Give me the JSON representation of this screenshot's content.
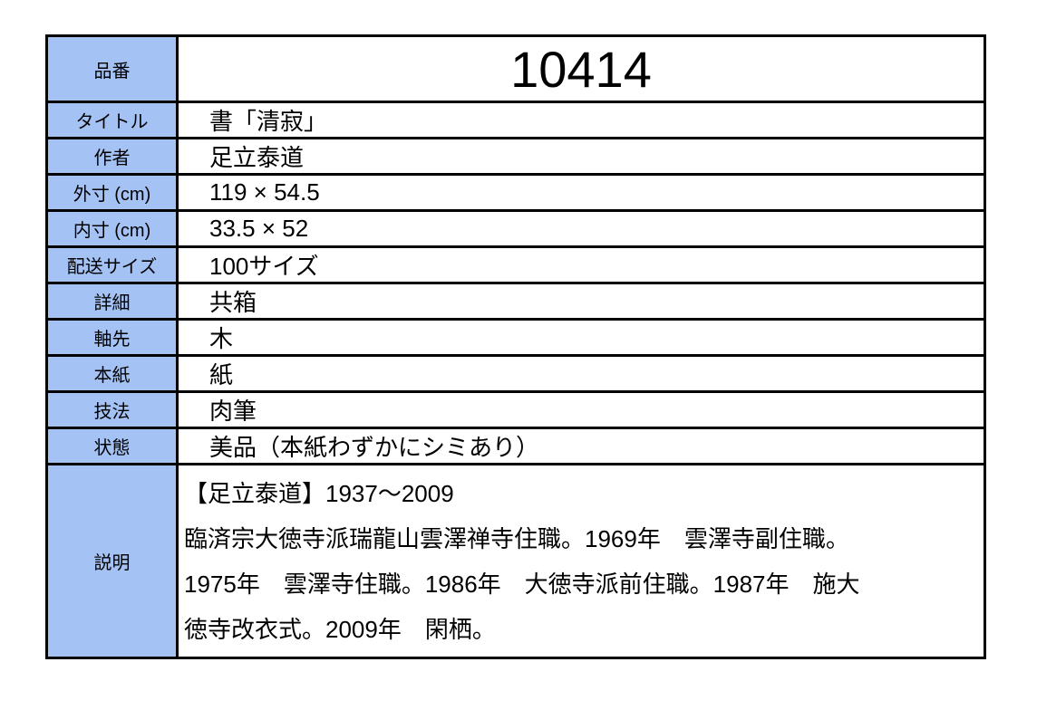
{
  "item_number": {
    "label": "品番",
    "value": "10414"
  },
  "rows": [
    {
      "label": "タイトル",
      "value": "書「清寂」"
    },
    {
      "label": "作者",
      "value": "足立泰道"
    },
    {
      "label": "外寸 (cm)",
      "value": "119 × 54.5"
    },
    {
      "label": "内寸 (cm)",
      "value": "33.5 × 52"
    },
    {
      "label": "配送サイズ",
      "value": "100サイズ"
    },
    {
      "label": "詳細",
      "value": "共箱"
    },
    {
      "label": "軸先",
      "value": "木"
    },
    {
      "label": "本紙",
      "value": "紙"
    },
    {
      "label": "技法",
      "value": "肉筆"
    },
    {
      "label": "状態",
      "value": "美品（本紙わずかにシミあり）"
    }
  ],
  "description": {
    "label": "説明",
    "lines": [
      "【足立泰道】1937～2009",
      "臨済宗大徳寺派瑞龍山雲澤禅寺住職。1969年　雲澤寺副住職。",
      "1975年　雲澤寺住職。1986年　大徳寺派前住職。1987年　施大",
      "徳寺改衣式。2009年　閑栖。"
    ]
  },
  "colors": {
    "label_background": "#a4c2f4",
    "border": "#000000"
  }
}
